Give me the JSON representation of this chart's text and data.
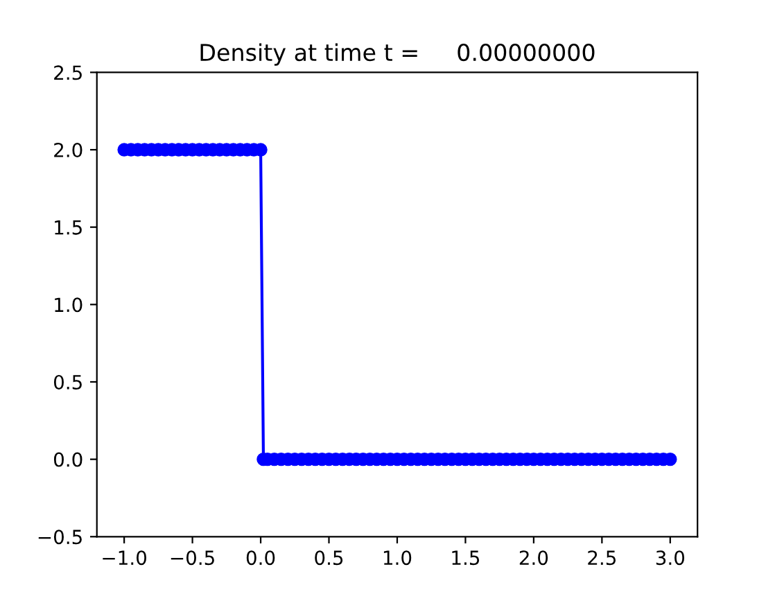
{
  "chart_data": {
    "type": "line",
    "title": "Density at time t =     0.00000000",
    "x": [
      -1.0,
      -0.95,
      -0.9,
      -0.85,
      -0.8,
      -0.75,
      -0.7,
      -0.65,
      -0.6,
      -0.55,
      -0.5,
      -0.45,
      -0.4,
      -0.35,
      -0.3,
      -0.25,
      -0.2,
      -0.15,
      -0.1,
      -0.05,
      0.0,
      0.02,
      0.05,
      0.1,
      0.15,
      0.2,
      0.25,
      0.3,
      0.35,
      0.4,
      0.45,
      0.5,
      0.55,
      0.6,
      0.65,
      0.7,
      0.75,
      0.8,
      0.85,
      0.9,
      0.95,
      1.0,
      1.05,
      1.1,
      1.15,
      1.2,
      1.25,
      1.3,
      1.35,
      1.4,
      1.45,
      1.5,
      1.55,
      1.6,
      1.65,
      1.7,
      1.75,
      1.8,
      1.85,
      1.9,
      1.95,
      2.0,
      2.05,
      2.1,
      2.15,
      2.2,
      2.25,
      2.3,
      2.35,
      2.4,
      2.45,
      2.5,
      2.55,
      2.6,
      2.65,
      2.7,
      2.75,
      2.8,
      2.85,
      2.9,
      2.95,
      3.0
    ],
    "series": [
      {
        "color": "#0000ff",
        "values": [
          2,
          2,
          2,
          2,
          2,
          2,
          2,
          2,
          2,
          2,
          2,
          2,
          2,
          2,
          2,
          2,
          2,
          2,
          2,
          2,
          2,
          0,
          0,
          0,
          0,
          0,
          0,
          0,
          0,
          0,
          0,
          0,
          0,
          0,
          0,
          0,
          0,
          0,
          0,
          0,
          0,
          0,
          0,
          0,
          0,
          0,
          0,
          0,
          0,
          0,
          0,
          0,
          0,
          0,
          0,
          0,
          0,
          0,
          0,
          0,
          0,
          0,
          0,
          0,
          0,
          0,
          0,
          0,
          0,
          0,
          0,
          0,
          0,
          0,
          0,
          0,
          0,
          0,
          0,
          0,
          0,
          0
        ]
      }
    ],
    "xlim": [
      -1.2,
      3.2
    ],
    "xticks": [
      {
        "value": -1.0,
        "label": "−1.0"
      },
      {
        "value": -0.5,
        "label": "−0.5"
      },
      {
        "value": 0.0,
        "label": "0.0"
      },
      {
        "value": 0.5,
        "label": "0.5"
      },
      {
        "value": 1.0,
        "label": "1.0"
      },
      {
        "value": 1.5,
        "label": "1.5"
      },
      {
        "value": 2.0,
        "label": "2.0"
      },
      {
        "value": 2.5,
        "label": "2.5"
      },
      {
        "value": 3.0,
        "label": "3.0"
      }
    ],
    "ylim": [
      -0.5,
      2.5
    ],
    "yticks": [
      {
        "value": -0.5,
        "label": "−0.5"
      },
      {
        "value": 0.0,
        "label": "0.0"
      },
      {
        "value": 0.5,
        "label": "0.5"
      },
      {
        "value": 1.0,
        "label": "1.0"
      },
      {
        "value": 1.5,
        "label": "1.5"
      },
      {
        "value": 2.0,
        "label": "2.0"
      },
      {
        "value": 2.5,
        "label": "2.5"
      }
    ],
    "marker": "circle",
    "line_style": "solid",
    "grid": false,
    "legend": false
  }
}
